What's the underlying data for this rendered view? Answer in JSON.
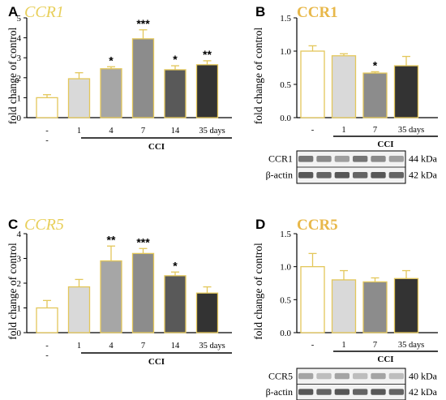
{
  "chart_data": [
    {
      "panel": "A",
      "title": "CCR1",
      "type": "bar",
      "ylabel": "fold change of control",
      "ylim": [
        0,
        5
      ],
      "yticks": [
        0,
        1,
        2,
        3,
        4,
        5
      ],
      "categories": [
        "-",
        "1",
        "4",
        "7",
        "14",
        "35 days"
      ],
      "values": [
        1.0,
        1.95,
        2.45,
        3.95,
        2.4,
        2.65
      ],
      "errors": [
        0.15,
        0.3,
        0.1,
        0.45,
        0.2,
        0.2
      ],
      "significance": [
        "",
        "",
        "*",
        "***",
        "*",
        "**"
      ],
      "fills": [
        "#ffffff",
        "#d9d9d9",
        "#a6a6a6",
        "#8c8c8c",
        "#595959",
        "#333333"
      ],
      "group_label": "CCI",
      "below_baseline_label": "-"
    },
    {
      "panel": "B",
      "title": "CCR1",
      "type": "bar",
      "ylabel": "fold change of control",
      "ylim": [
        0,
        1.5
      ],
      "yticks": [
        "0.0",
        "0.5",
        "1.0",
        "1.5"
      ],
      "categories": [
        "-",
        "1",
        "7",
        "35 days"
      ],
      "values": [
        1.0,
        0.93,
        0.67,
        0.78
      ],
      "errors": [
        0.08,
        0.03,
        0.02,
        0.14
      ],
      "significance": [
        "",
        "",
        "*",
        ""
      ],
      "fills": [
        "#ffffff",
        "#d9d9d9",
        "#8c8c8c",
        "#333333"
      ],
      "group_label": "CCI",
      "blot_labels": [
        "CCR1",
        "β-actin"
      ],
      "blot_sizes": [
        "44 kDa",
        "42 kDa"
      ]
    },
    {
      "panel": "C",
      "title": "CCR5",
      "type": "bar",
      "ylabel": "fold change of control",
      "ylim": [
        0,
        4
      ],
      "yticks": [
        0,
        1,
        2,
        3,
        4
      ],
      "categories": [
        "-",
        "1",
        "4",
        "7",
        "14",
        "35 days"
      ],
      "values": [
        1.0,
        1.85,
        2.9,
        3.2,
        2.3,
        1.6
      ],
      "errors": [
        0.3,
        0.3,
        0.6,
        0.2,
        0.15,
        0.25
      ],
      "significance": [
        "",
        "",
        "**",
        "***",
        "*",
        ""
      ],
      "fills": [
        "#ffffff",
        "#d9d9d9",
        "#a6a6a6",
        "#8c8c8c",
        "#595959",
        "#333333"
      ],
      "group_label": "CCI",
      "below_baseline_label": "-"
    },
    {
      "panel": "D",
      "title": "CCR5",
      "type": "bar",
      "ylabel": "fold change of control",
      "ylim": [
        0,
        1.5
      ],
      "yticks": [
        "0.0",
        "0.5",
        "1.0",
        "1.5"
      ],
      "categories": [
        "-",
        "1",
        "7",
        "35 days"
      ],
      "values": [
        1.0,
        0.8,
        0.77,
        0.82
      ],
      "errors": [
        0.2,
        0.14,
        0.06,
        0.12
      ],
      "significance": [
        "",
        "",
        "",
        ""
      ],
      "fills": [
        "#ffffff",
        "#d9d9d9",
        "#8c8c8c",
        "#333333"
      ],
      "group_label": "CCI",
      "blot_labels": [
        "CCR5",
        "β-actin"
      ],
      "blot_sizes": [
        "40 kDa",
        "42 kDa"
      ]
    }
  ],
  "colors": {
    "bar_outline": "#e3c75a",
    "axis": "#000000",
    "title_italic": "#e8cf5a",
    "title_bold": "#e8b84a"
  }
}
